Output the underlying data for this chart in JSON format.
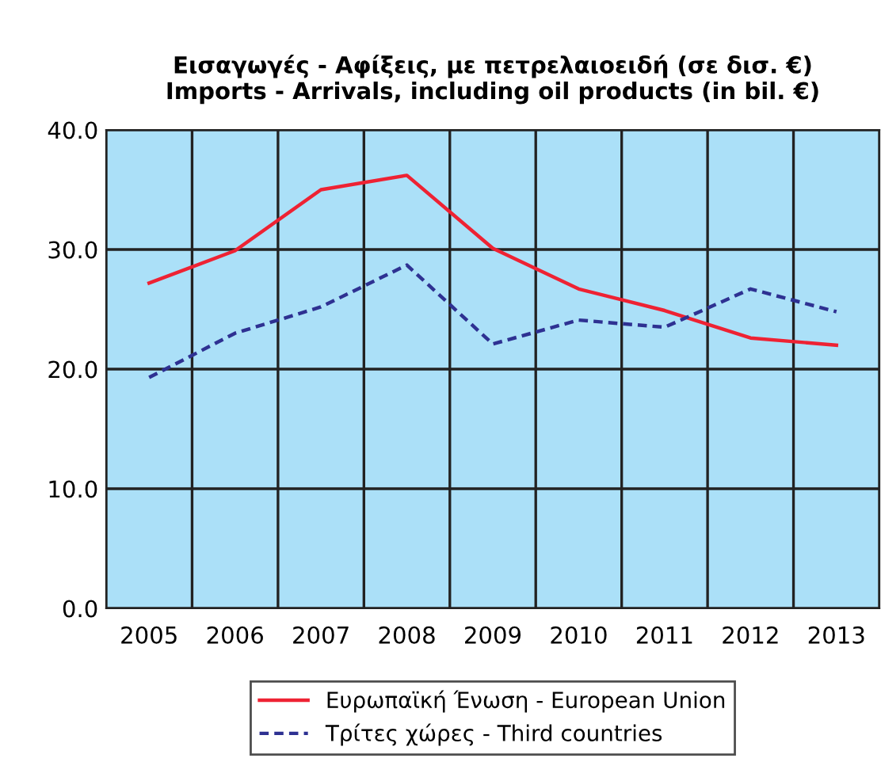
{
  "chart_data": {
    "type": "line",
    "title": "Εισαγωγές - Αφίξεις, με πετρελαιοειδή (σε δισ. €)\nImports - Arrivals, including oil products (in bil. €)",
    "categories": [
      "2005",
      "2006",
      "2007",
      "2008",
      "2009",
      "2010",
      "2011",
      "2012",
      "2013"
    ],
    "series": [
      {
        "name": "Ευρωπαϊκή Ένωση - European Union",
        "color": "#ee2233",
        "line_style": "solid",
        "values": [
          27.2,
          29.9,
          35.0,
          36.2,
          30.1,
          26.7,
          24.9,
          22.6,
          22.0
        ]
      },
      {
        "name": "Τρίτες χώρες - Third countries",
        "color": "#2e3192",
        "line_style": "dashed",
        "values": [
          19.3,
          23.0,
          25.2,
          28.7,
          22.1,
          24.1,
          23.5,
          26.7,
          24.8
        ]
      }
    ],
    "ylim": [
      0,
      40
    ],
    "yticks": [
      {
        "value": 0,
        "label": "0.0"
      },
      {
        "value": 10,
        "label": "10.0"
      },
      {
        "value": 20,
        "label": "20.0"
      },
      {
        "value": 30,
        "label": "30.0"
      },
      {
        "value": 40,
        "label": "40.0"
      }
    ],
    "grid": true,
    "legend": "bottom",
    "marker": "none"
  }
}
